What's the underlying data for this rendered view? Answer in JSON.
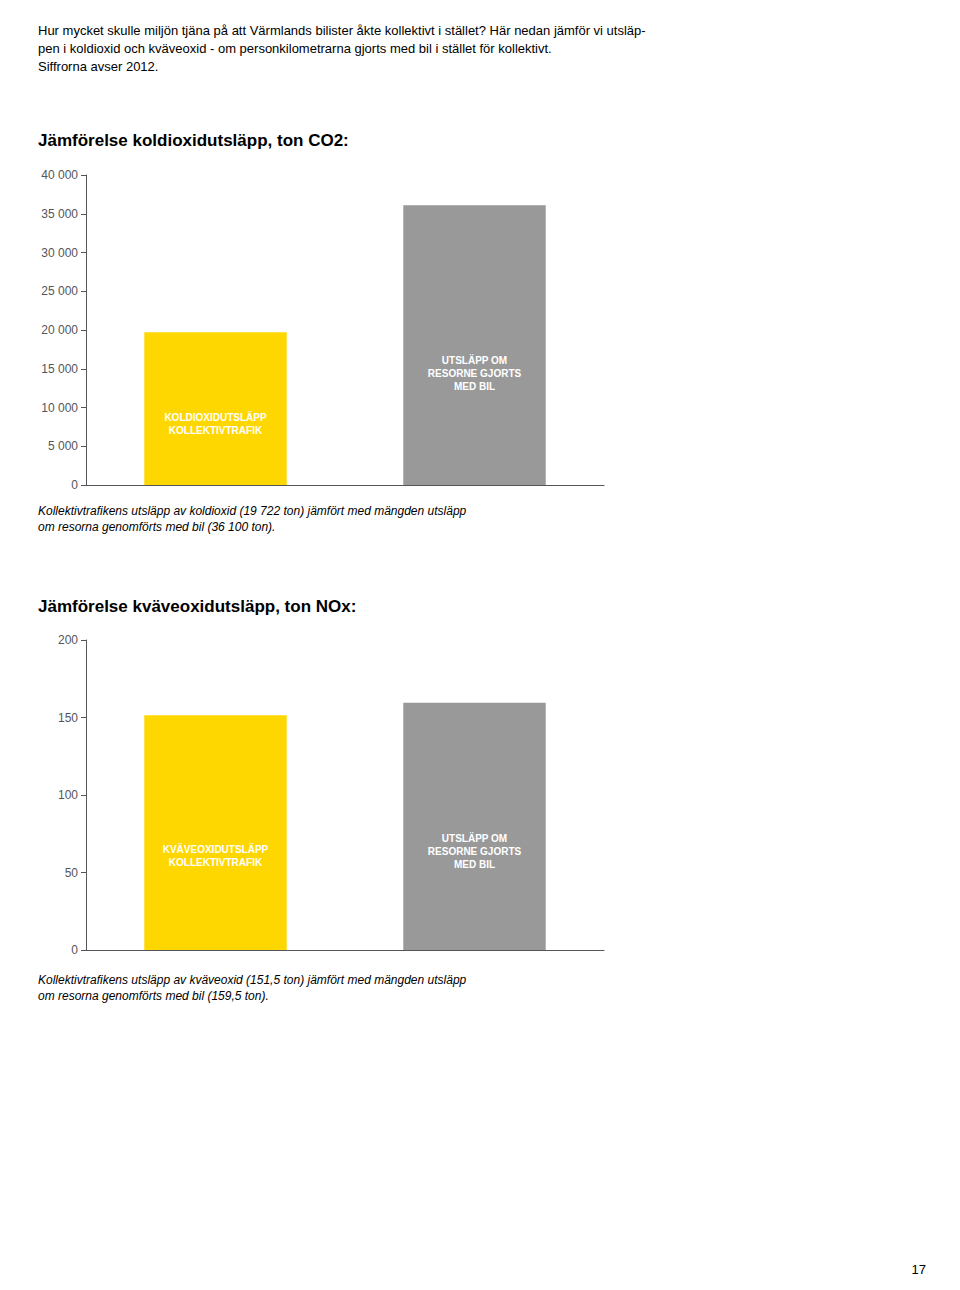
{
  "annotations": [
    "Hur mycket skulle miljön tjäna på att Värmlands bilister åkte kollektivt i stället? Här nedan jämför vi utsläp-",
    "pen i koldioxid och kväveoxid - om personkilometrarna gjorts med bil i stället för kollektivt.",
    "Siffrorna avser 2012."
  ],
  "page_number": "17",
  "chart_data": [
    {
      "type": "bar",
      "title": "Jämförelse koldioxidutsläpp, ton CO2:",
      "categories": [
        "KOLDIOXIDUTSLÄPP\nKOLLEKTIVTRAFIK",
        "UTSLÄPP OM\nRESORNE GJORTS\nMED BIL"
      ],
      "values": [
        19722,
        36100
      ],
      "colors": [
        "#FFD700",
        "#999999"
      ],
      "ylim": [
        0,
        40000
      ],
      "yticks": [
        0,
        {
          "value": 5000,
          "label": "5 000"
        },
        {
          "value": 10000,
          "label": "10 000"
        },
        {
          "value": 15000,
          "label": "15 000"
        },
        {
          "value": 20000,
          "label": "20 000"
        },
        {
          "value": 25000,
          "label": "25 000"
        },
        {
          "value": 30000,
          "label": "30 000"
        },
        {
          "value": 35000,
          "label": "35 000"
        },
        {
          "value": 40000,
          "label": "40 000"
        }
      ],
      "grid": false,
      "tick_labels": "y",
      "annotations": [
        "Kollektivtrafikens utsläpp av koldioxid (19 722 ton) jämfört med mängden utsläpp\nom resorna genomförts med bil (36 100 ton)."
      ]
    },
    {
      "type": "bar",
      "title": "Jämförelse kväveoxidutsläpp, ton NOx:",
      "categories": [
        "KVÄVEOXIDUTSLÄPP\nKOLLEKTIVTRAFIK",
        "UTSLÄPP OM\nRESORNE GJORTS\nMED BIL"
      ],
      "values": [
        151.5,
        159.5
      ],
      "colors": [
        "#FFD700",
        "#999999"
      ],
      "ylim": [
        0,
        200
      ],
      "yticks": [
        0,
        50,
        100,
        150,
        200
      ],
      "grid": false,
      "tick_labels": "y",
      "annotations": [
        "Kollektivtrafikens utsläpp av kväveoxid (151,5 ton) jämfört med mängden utsläpp\nom resorna genomförts med bil (159,5 ton)."
      ]
    }
  ]
}
